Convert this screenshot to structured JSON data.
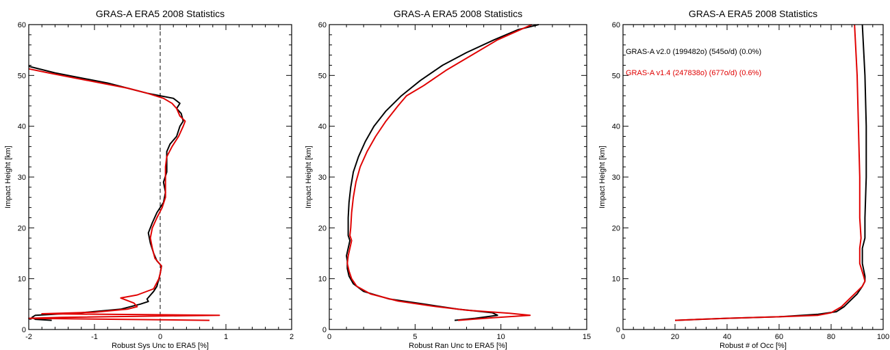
{
  "chart_data": [
    {
      "type": "line",
      "title": "GRAS-A ERA5 2008 Statistics",
      "xlabel": "Robust Sys Unc to ERA5 [%]",
      "ylabel": "Impact Height [km]",
      "xlim": [
        -2,
        2
      ],
      "ylim": [
        0,
        60
      ],
      "xticks": [
        "-2",
        "-1",
        "0",
        "1",
        "2"
      ],
      "yticks": [
        "0",
        "10",
        "20",
        "30",
        "40",
        "50",
        "60"
      ],
      "zero_line": true,
      "series": [
        {
          "color": "#000000",
          "points": [
            [
              -1.65,
              1.8
            ],
            [
              -1.9,
              2.0
            ],
            [
              -1.95,
              2.4
            ],
            [
              -1.9,
              2.8
            ],
            [
              -1.2,
              3.3
            ],
            [
              -0.6,
              4.0
            ],
            [
              -0.3,
              5.0
            ],
            [
              -0.18,
              5.5
            ],
            [
              -0.2,
              6.0
            ],
            [
              -0.1,
              7.5
            ],
            [
              -0.05,
              8.5
            ],
            [
              -0.02,
              10.0
            ],
            [
              0.0,
              11.0
            ],
            [
              0.02,
              12.5
            ],
            [
              -0.05,
              13.5
            ],
            [
              -0.1,
              15.0
            ],
            [
              -0.15,
              17.0
            ],
            [
              -0.18,
              19.0
            ],
            [
              -0.12,
              21.0
            ],
            [
              -0.05,
              23.0
            ],
            [
              0.05,
              25.0
            ],
            [
              0.08,
              27.0
            ],
            [
              0.05,
              29.0
            ],
            [
              0.1,
              31.0
            ],
            [
              0.1,
              33.0
            ],
            [
              0.1,
              35.0
            ],
            [
              0.15,
              36.5
            ],
            [
              0.25,
              38.0
            ],
            [
              0.3,
              40.0
            ],
            [
              0.35,
              41.0
            ],
            [
              0.32,
              42.5
            ],
            [
              0.25,
              43.5
            ],
            [
              0.3,
              44.5
            ],
            [
              0.2,
              45.5
            ],
            [
              0.0,
              46.0
            ],
            [
              -0.2,
              46.5
            ],
            [
              -0.5,
              47.5
            ],
            [
              -0.8,
              48.5
            ],
            [
              -1.2,
              49.5
            ],
            [
              -1.6,
              50.5
            ],
            [
              -2.0,
              51.8
            ]
          ]
        },
        {
          "color": "#e00000",
          "points": [
            [
              0.75,
              1.8
            ],
            [
              -2.0,
              2.2
            ],
            [
              -1.5,
              2.4
            ],
            [
              0.9,
              2.8
            ],
            [
              -1.8,
              3.1
            ],
            [
              -1.0,
              3.4
            ],
            [
              -0.5,
              4.0
            ],
            [
              -0.35,
              4.5
            ],
            [
              -0.4,
              5.2
            ],
            [
              -0.6,
              6.2
            ],
            [
              -0.35,
              6.8
            ],
            [
              -0.1,
              8.0
            ],
            [
              -0.02,
              10.0
            ],
            [
              0.0,
              11.0
            ],
            [
              0.02,
              12.5
            ],
            [
              -0.08,
              14.0
            ],
            [
              -0.12,
              16.0
            ],
            [
              -0.15,
              18.0
            ],
            [
              -0.12,
              20.0
            ],
            [
              -0.05,
              22.0
            ],
            [
              0.03,
              24.0
            ],
            [
              0.08,
              26.0
            ],
            [
              0.08,
              28.0
            ],
            [
              0.08,
              30.0
            ],
            [
              0.08,
              32.0
            ],
            [
              0.1,
              34.0
            ],
            [
              0.18,
              36.0
            ],
            [
              0.28,
              38.0
            ],
            [
              0.35,
              40.0
            ],
            [
              0.38,
              41.0
            ],
            [
              0.3,
              42.0
            ],
            [
              0.25,
              43.5
            ],
            [
              0.18,
              44.5
            ],
            [
              0.05,
              45.5
            ],
            [
              -0.2,
              46.5
            ],
            [
              -0.5,
              47.5
            ],
            [
              -0.9,
              48.5
            ],
            [
              -1.3,
              49.5
            ],
            [
              -1.7,
              50.5
            ],
            [
              -2.0,
              51.3
            ]
          ]
        }
      ]
    },
    {
      "type": "line",
      "title": "GRAS-A ERA5 2008 Statistics",
      "xlabel": "Robust Ran Unc to ERA5 [%]",
      "ylabel": "Impact Height [km]",
      "xlim": [
        0,
        15
      ],
      "ylim": [
        0,
        60
      ],
      "xticks": [
        "0",
        "5",
        "10",
        "15"
      ],
      "yticks": [
        "0",
        "10",
        "20",
        "30",
        "40",
        "50",
        "60"
      ],
      "series": [
        {
          "color": "#000000",
          "points": [
            [
              7.3,
              1.8
            ],
            [
              8.5,
              2.2
            ],
            [
              9.8,
              2.8
            ],
            [
              9.5,
              3.3
            ],
            [
              7.5,
              4.0
            ],
            [
              5.5,
              5.0
            ],
            [
              3.5,
              6.0
            ],
            [
              2.0,
              7.5
            ],
            [
              1.4,
              9.0
            ],
            [
              1.15,
              10.5
            ],
            [
              1.05,
              12.0
            ],
            [
              1.05,
              13.5
            ],
            [
              1.0,
              14.5
            ],
            [
              1.1,
              16.0
            ],
            [
              1.2,
              17.5
            ],
            [
              1.1,
              18.5
            ],
            [
              1.1,
              20.0
            ],
            [
              1.1,
              22.0
            ],
            [
              1.15,
              25.0
            ],
            [
              1.25,
              28.0
            ],
            [
              1.4,
              31.0
            ],
            [
              1.7,
              34.0
            ],
            [
              2.1,
              37.0
            ],
            [
              2.6,
              40.0
            ],
            [
              3.3,
              43.0
            ],
            [
              4.2,
              46.0
            ],
            [
              5.3,
              49.0
            ],
            [
              6.6,
              52.0
            ],
            [
              8.0,
              54.5
            ],
            [
              9.6,
              57.0
            ],
            [
              11.0,
              59.0
            ],
            [
              12.2,
              60.0
            ]
          ]
        },
        {
          "color": "#e00000",
          "points": [
            [
              7.5,
              1.8
            ],
            [
              9.5,
              2.3
            ],
            [
              11.7,
              2.8
            ],
            [
              10.5,
              3.2
            ],
            [
              8.0,
              3.8
            ],
            [
              6.0,
              4.6
            ],
            [
              4.0,
              5.6
            ],
            [
              2.4,
              7.0
            ],
            [
              1.6,
              8.5
            ],
            [
              1.3,
              10.0
            ],
            [
              1.15,
              11.5
            ],
            [
              1.05,
              13.0
            ],
            [
              1.1,
              14.5
            ],
            [
              1.2,
              16.0
            ],
            [
              1.3,
              17.5
            ],
            [
              1.2,
              18.5
            ],
            [
              1.25,
              20.0
            ],
            [
              1.3,
              23.0
            ],
            [
              1.4,
              26.0
            ],
            [
              1.55,
              29.0
            ],
            [
              1.8,
              32.0
            ],
            [
              2.2,
              35.0
            ],
            [
              2.7,
              38.0
            ],
            [
              3.3,
              41.0
            ],
            [
              4.0,
              44.0
            ],
            [
              4.5,
              46.0
            ],
            [
              5.5,
              48.0
            ],
            [
              6.8,
              51.0
            ],
            [
              8.3,
              54.0
            ],
            [
              9.8,
              57.0
            ],
            [
              11.0,
              58.8
            ],
            [
              11.8,
              60.0
            ]
          ]
        }
      ]
    },
    {
      "type": "line",
      "title": "GRAS-A ERA5 2008 Statistics",
      "xlabel": "Robust # of Occ [%]",
      "ylabel": "Impact Height [km]",
      "xlim": [
        0,
        100
      ],
      "ylim": [
        0,
        60
      ],
      "xticks": [
        "0",
        "20",
        "40",
        "60",
        "80",
        "100"
      ],
      "yticks": [
        "0",
        "10",
        "20",
        "30",
        "40",
        "50",
        "60"
      ],
      "legend": [
        {
          "text": "GRAS-A v2.0 (199482o) (545o/d) (0.0%)",
          "color": "#000000"
        },
        {
          "text": "GRAS-A v1.4 (247838o) (677o/d) (0.6%)",
          "color": "#e00000"
        }
      ],
      "series": [
        {
          "color": "#000000",
          "points": [
            [
              20,
              1.8
            ],
            [
              40,
              2.2
            ],
            [
              60,
              2.5
            ],
            [
              75,
              3.0
            ],
            [
              82,
              3.5
            ],
            [
              85,
              4.5
            ],
            [
              87,
              5.5
            ],
            [
              90,
              7.0
            ],
            [
              92,
              8.5
            ],
            [
              93,
              9.5
            ],
            [
              93,
              10.5
            ],
            [
              92,
              13.0
            ],
            [
              92,
              16.0
            ],
            [
              93,
              18.0
            ],
            [
              93,
              22.0
            ],
            [
              93.5,
              30.0
            ],
            [
              93.5,
              40.0
            ],
            [
              93,
              50.0
            ],
            [
              92.5,
              55.0
            ],
            [
              92,
              60.0
            ]
          ]
        },
        {
          "color": "#e00000",
          "points": [
            [
              20,
              1.8
            ],
            [
              40,
              2.2
            ],
            [
              60,
              2.5
            ],
            [
              75,
              2.8
            ],
            [
              80,
              3.3
            ],
            [
              84,
              4.5
            ],
            [
              87,
              6.0
            ],
            [
              90,
              7.5
            ],
            [
              92,
              8.5
            ],
            [
              93,
              9.5
            ],
            [
              92.5,
              10.5
            ],
            [
              91,
              13.0
            ],
            [
              91,
              16.0
            ],
            [
              91.5,
              18.0
            ],
            [
              91,
              22.0
            ],
            [
              91,
              30.0
            ],
            [
              90.5,
              40.0
            ],
            [
              90,
              50.0
            ],
            [
              89.5,
              55.0
            ],
            [
              89,
              60.0
            ]
          ]
        }
      ]
    }
  ]
}
